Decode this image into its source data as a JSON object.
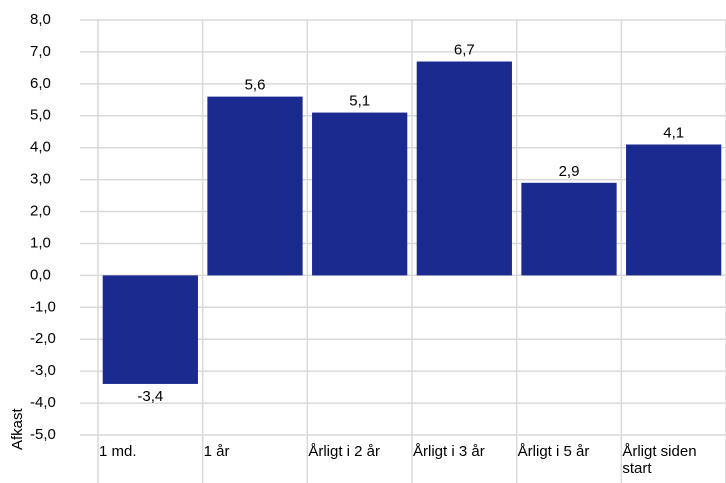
{
  "chart_data": {
    "type": "bar",
    "y_label": "Afkast",
    "categories": [
      "1 md.",
      "1 år",
      "Årligt i 2 år",
      "Årligt i 3 år",
      "Årligt i 5 år",
      "Årligt siden start"
    ],
    "values": [
      -3.4,
      5.6,
      5.1,
      6.7,
      2.9,
      4.1
    ],
    "value_labels": [
      "-3,4",
      "5,6",
      "5,1",
      "6,7",
      "2,9",
      "4,1"
    ],
    "color": "#1a2a8f",
    "ylim": [
      -5,
      8
    ],
    "yticks": [
      {
        "value": -5,
        "label": "-5,0"
      },
      {
        "value": -4,
        "label": "-4,0"
      },
      {
        "value": -3,
        "label": "-3,0"
      },
      {
        "value": -2,
        "label": "-2,0"
      },
      {
        "value": -1,
        "label": "-1,0"
      },
      {
        "value": 0,
        "label": "0,0"
      },
      {
        "value": 1,
        "label": "1,0"
      },
      {
        "value": 2,
        "label": "2,0"
      },
      {
        "value": 3,
        "label": "3,0"
      },
      {
        "value": 4,
        "label": "4,0"
      },
      {
        "value": 5,
        "label": "5,0"
      },
      {
        "value": 6,
        "label": "6,0"
      },
      {
        "value": 7,
        "label": "7,0"
      },
      {
        "value": 8,
        "label": "8,0"
      }
    ],
    "grid": true
  }
}
